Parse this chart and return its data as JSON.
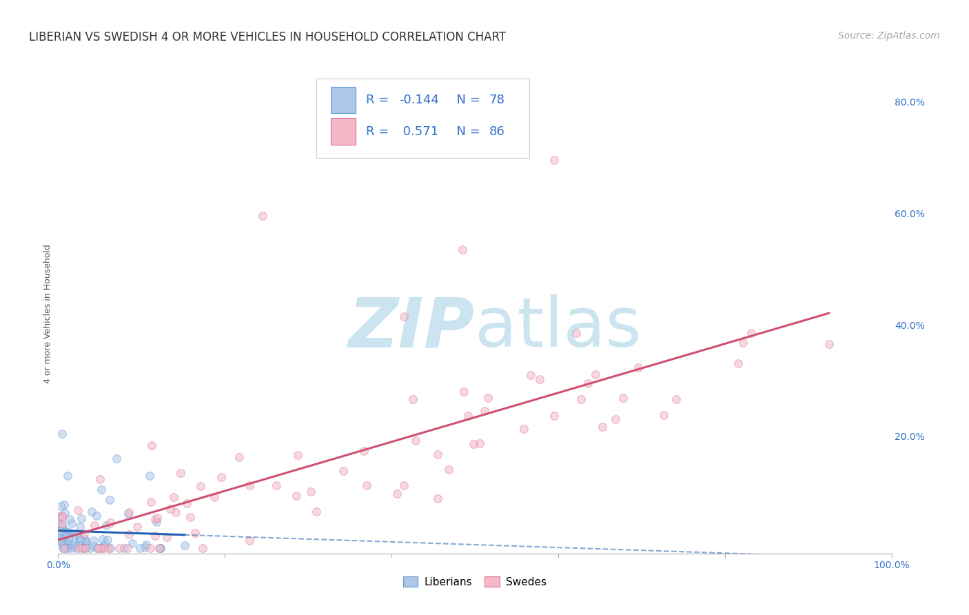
{
  "title": "LIBERIAN VS SWEDISH 4 OR MORE VEHICLES IN HOUSEHOLD CORRELATION CHART",
  "source": "Source: ZipAtlas.com",
  "ylabel": "4 or more Vehicles in Household",
  "xlim": [
    0.0,
    1.0
  ],
  "ylim": [
    -0.01,
    0.85
  ],
  "ytick_right_labels": [
    "20.0%",
    "40.0%",
    "60.0%",
    "80.0%"
  ],
  "ytick_right_values": [
    0.2,
    0.4,
    0.6,
    0.8
  ],
  "liberian_R": -0.144,
  "liberian_N": 78,
  "swedish_R": 0.571,
  "swedish_N": 86,
  "liberian_color": "#aec6e8",
  "liberian_edge_color": "#5b9bd5",
  "swedish_color": "#f4b8c8",
  "swedish_edge_color": "#e07090",
  "liberian_line_color": "#2060b0",
  "swedish_line_color": "#d05070",
  "background_color": "#ffffff",
  "grid_color": "#c8c8c8",
  "watermark_color": "#cce4f0",
  "legend_color": "#3070cc",
  "tick_color": "#3070cc",
  "title_fontsize": 12,
  "axis_label_fontsize": 9,
  "tick_fontsize": 10,
  "source_fontsize": 10,
  "legend_fontsize": 13,
  "dot_size": 70,
  "dot_alpha": 0.55
}
